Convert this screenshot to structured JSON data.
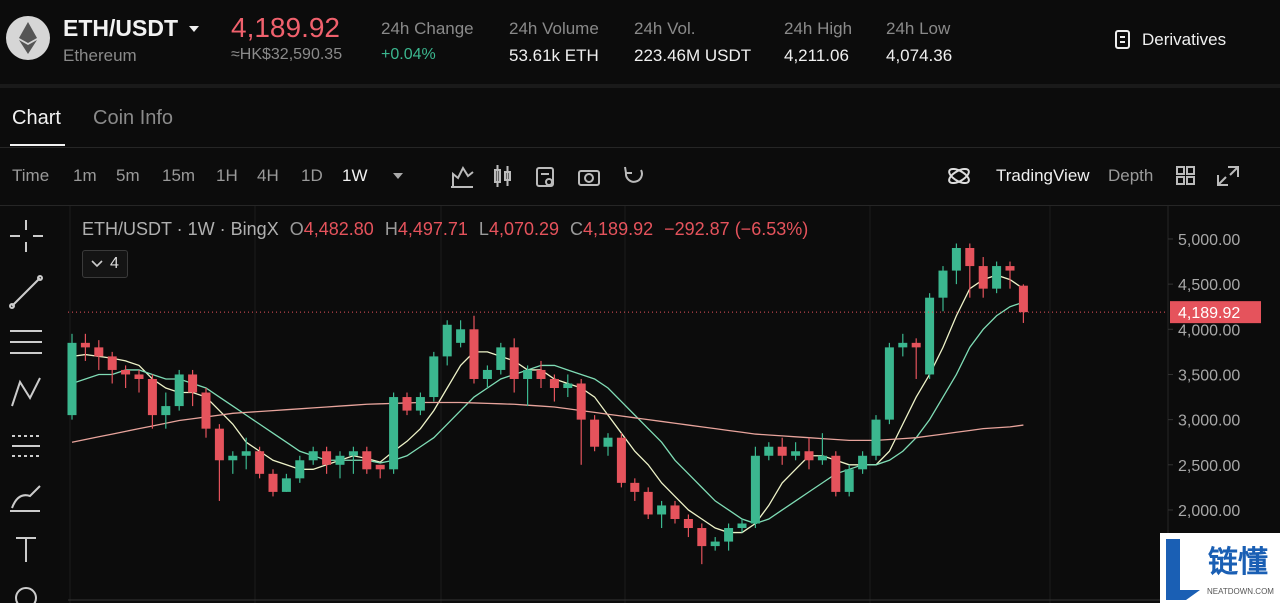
{
  "header": {
    "pair": "ETH/USDT",
    "name": "Ethereum",
    "price": "4,189.92",
    "price_hk": "≈HK$32,590.35",
    "stats": [
      {
        "label": "24h Change",
        "value": "+0.04%"
      },
      {
        "label": "24h Volume",
        "value": "53.61k ETH"
      },
      {
        "label": "24h Vol.",
        "value": "223.46M USDT"
      },
      {
        "label": "24h High",
        "value": "4,211.06"
      },
      {
        "label": "24h Low",
        "value": "4,074.36"
      }
    ],
    "derivatives": "Derivatives"
  },
  "tabs": [
    "Chart",
    "Coin Info"
  ],
  "toolbar": {
    "time": "Time",
    "intervals": [
      "1m",
      "5m",
      "15m",
      "1H",
      "4H",
      "1D",
      "1W"
    ],
    "tradingview": "TradingView",
    "depth": "Depth"
  },
  "chart_data": {
    "type": "candlestick",
    "legend": {
      "symbol": "ETH/USDT · 1W · BingX",
      "ohlc": [
        {
          "label": "O",
          "value": "4,482.80"
        },
        {
          "label": "H",
          "value": "4,497.71"
        },
        {
          "label": "L",
          "value": "4,070.29"
        },
        {
          "label": "C",
          "value": "4,189.92"
        }
      ],
      "change": "−292.87 (−6.53%)",
      "indicators": "4"
    },
    "up_color": "#3bb78f",
    "down_color": "#e5535c",
    "open": [
      3050,
      3850,
      3800,
      3700,
      3550,
      3500,
      3450,
      3050,
      3150,
      3500,
      3300,
      2900,
      2550,
      2600,
      2650,
      2400,
      2200,
      2350,
      2550,
      2650,
      2500,
      2600,
      2650,
      2500,
      2450,
      3250,
      3100,
      3250,
      3700,
      3850,
      4000,
      3450,
      3550,
      3800,
      3450,
      3550,
      3450,
      3350,
      3400,
      3000,
      2700,
      2800,
      2300,
      2200,
      1950,
      2050,
      1900,
      1800,
      1600,
      1650,
      1800,
      1850,
      2600,
      2700,
      2600,
      2650,
      2550,
      2600,
      2200,
      2450,
      2600,
      3000,
      3800,
      3850,
      3500,
      4350,
      4650,
      4900,
      4700,
      4450,
      4700,
      4482.8
    ],
    "high": [
      3950,
      3950,
      3880,
      3750,
      3600,
      3550,
      3500,
      3300,
      3550,
      3550,
      3350,
      2950,
      2650,
      2800,
      2700,
      2450,
      2400,
      2600,
      2700,
      2700,
      2650,
      2700,
      2700,
      2500,
      3300,
      3300,
      3300,
      3750,
      4100,
      4100,
      4150,
      3600,
      3850,
      3900,
      3600,
      3650,
      3500,
      3500,
      3450,
      3050,
      2850,
      2850,
      2350,
      2250,
      2100,
      2100,
      1950,
      1850,
      1700,
      1850,
      1900,
      2700,
      2750,
      2800,
      2750,
      2800,
      2850,
      2650,
      2500,
      2650,
      3050,
      3850,
      3950,
      3900,
      4400,
      4700,
      4950,
      4950,
      4800,
      4750,
      4750,
      4497.71
    ],
    "low": [
      3000,
      3650,
      3550,
      3400,
      3350,
      3300,
      2900,
      2900,
      3100,
      3150,
      2800,
      2100,
      2400,
      2450,
      2350,
      2150,
      2200,
      2300,
      2500,
      2400,
      2350,
      2400,
      2400,
      2350,
      2400,
      3050,
      3050,
      3200,
      3600,
      3800,
      3400,
      3350,
      3500,
      3300,
      3150,
      3350,
      3200,
      3250,
      2500,
      2650,
      2600,
      2250,
      2100,
      1900,
      1800,
      1850,
      1700,
      1400,
      1550,
      1550,
      1750,
      1800,
      2550,
      2500,
      2550,
      2450,
      2500,
      2150,
      2150,
      2400,
      2550,
      2950,
      3700,
      3450,
      3450,
      4200,
      4500,
      4350,
      4350,
      4400,
      4450,
      4070.29
    ],
    "close": [
      3850,
      3800,
      3700,
      3550,
      3500,
      3450,
      3050,
      3150,
      3500,
      3300,
      2900,
      2550,
      2600,
      2650,
      2400,
      2200,
      2350,
      2550,
      2650,
      2500,
      2600,
      2650,
      2450,
      2450,
      3250,
      3100,
      3250,
      3700,
      4050,
      4000,
      3450,
      3550,
      3800,
      3450,
      3550,
      3450,
      3350,
      3400,
      3000,
      2700,
      2800,
      2300,
      2200,
      1950,
      2050,
      1900,
      1800,
      1600,
      1650,
      1800,
      1850,
      2600,
      2700,
      2600,
      2650,
      2550,
      2600,
      2200,
      2450,
      2600,
      3000,
      3800,
      3850,
      3800,
      4350,
      4650,
      4900,
      4700,
      4450,
      4700,
      4650,
      4189.92
    ],
    "series": [
      {
        "color": "#eef3c8",
        "values": [
          3700,
          3720,
          3700,
          3680,
          3650,
          3600,
          3450,
          3350,
          3300,
          3300,
          3250,
          3100,
          2950,
          2750,
          2650,
          2550,
          2500,
          2450,
          2450,
          2500,
          2550,
          2600,
          2570,
          2530,
          2650,
          2760,
          2900,
          3100,
          3350,
          3600,
          3750,
          3750,
          3700,
          3650,
          3550,
          3550,
          3450,
          3400,
          3350,
          3250,
          3050,
          2850,
          2650,
          2500,
          2300,
          2150,
          2000,
          1900,
          1800,
          1750,
          1750,
          1850,
          2050,
          2300,
          2450,
          2600,
          2600,
          2550,
          2500,
          2500,
          2500,
          2650,
          2950,
          3250,
          3500,
          3800,
          4150,
          4450,
          4550,
          4600,
          4550,
          4450
        ]
      },
      {
        "color": "#7fdcb5",
        "values": [
          3400,
          3450,
          3500,
          3500,
          3550,
          3550,
          3500,
          3450,
          3450,
          3400,
          3350,
          3250,
          3150,
          3050,
          2950,
          2850,
          2750,
          2650,
          2600,
          2550,
          2550,
          2550,
          2550,
          2520,
          2550,
          2600,
          2700,
          2800,
          2950,
          3100,
          3250,
          3350,
          3450,
          3500,
          3550,
          3600,
          3600,
          3550,
          3500,
          3450,
          3350,
          3200,
          3050,
          2900,
          2750,
          2550,
          2400,
          2250,
          2100,
          2000,
          1900,
          1850,
          1900,
          2000,
          2100,
          2200,
          2300,
          2400,
          2450,
          2500,
          2500,
          2550,
          2650,
          2800,
          3000,
          3250,
          3500,
          3800,
          4000,
          4150,
          4250,
          4300
        ]
      },
      {
        "color": "#e8a49c",
        "values": [
          2750,
          2780,
          2810,
          2840,
          2870,
          2900,
          2930,
          2960,
          2990,
          3010,
          3030,
          3050,
          3070,
          3080,
          3090,
          3100,
          3110,
          3120,
          3130,
          3140,
          3150,
          3160,
          3170,
          3175,
          3180,
          3185,
          3190,
          3190,
          3190,
          3190,
          3185,
          3180,
          3175,
          3170,
          3160,
          3150,
          3140,
          3120,
          3100,
          3080,
          3060,
          3040,
          3020,
          3000,
          2980,
          2960,
          2940,
          2920,
          2900,
          2880,
          2860,
          2840,
          2830,
          2820,
          2810,
          2800,
          2790,
          2780,
          2770,
          2770,
          2770,
          2780,
          2790,
          2800,
          2820,
          2840,
          2860,
          2880,
          2900,
          2910,
          2920,
          2940
        ]
      }
    ],
    "last_price": {
      "value": 4189.92,
      "label": "4,189.92"
    },
    "last_price_color": "#e5535c",
    "ylim": [
      970,
      5365
    ],
    "yticks": [
      {
        "value": 2000,
        "label": "2,000.00"
      },
      {
        "value": 2500,
        "label": "2,500.00"
      },
      {
        "value": 3000,
        "label": "3,000.00"
      },
      {
        "value": 3500,
        "label": "3,500.00"
      },
      {
        "value": 4000,
        "label": "4,000.00"
      },
      {
        "value": 4500,
        "label": "4,500.00"
      },
      {
        "value": 5000,
        "label": "5,000.00"
      }
    ]
  },
  "watermark": {
    "brand": "链懂",
    "site": "NEATDOWN.COM"
  }
}
